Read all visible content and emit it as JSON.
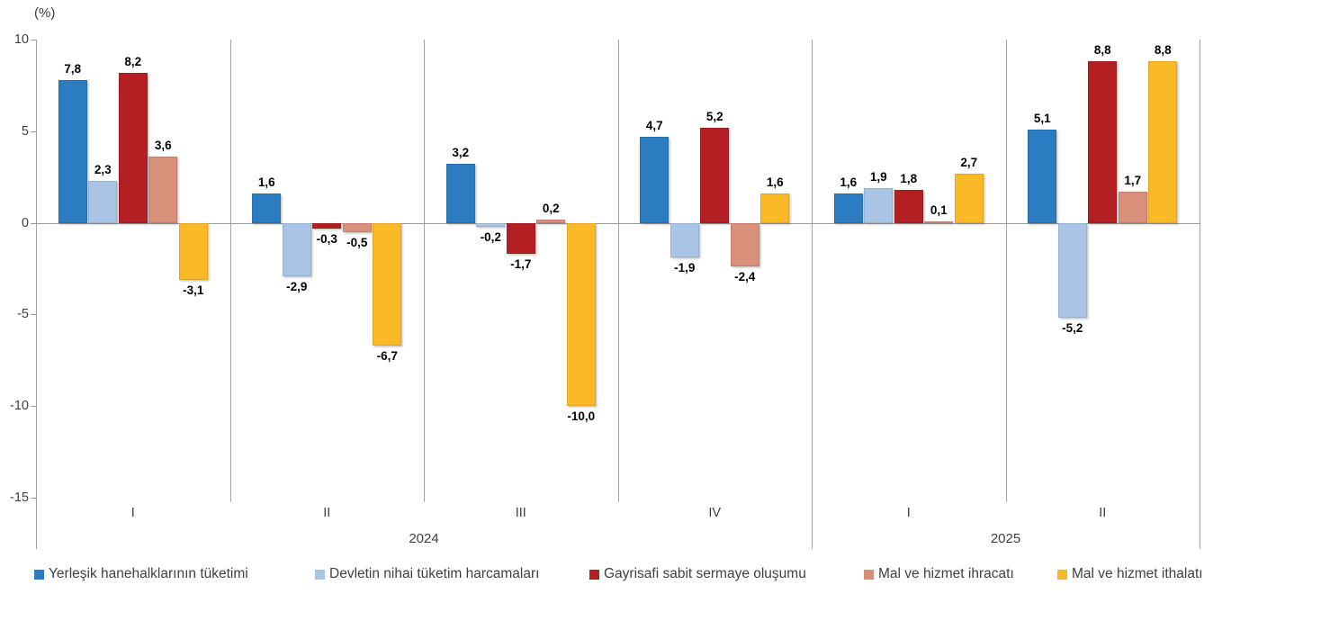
{
  "chart_data": {
    "type": "bar",
    "title": "",
    "unit_label": "(%)",
    "xlabel": "",
    "ylabel": "(%)",
    "y_axis": {
      "min": -15,
      "max": 10,
      "ticks": [
        10,
        5,
        0,
        -5,
        -10,
        -15
      ],
      "grid": false
    },
    "categories": [
      "I",
      "II",
      "III",
      "IV",
      "I",
      "II"
    ],
    "year_groups": [
      {
        "label": "2024",
        "quarters": [
          "I",
          "II",
          "III",
          "IV"
        ]
      },
      {
        "label": "2025",
        "quarters": [
          "I",
          "II"
        ]
      }
    ],
    "legend_position": "bottom",
    "series": [
      {
        "name": "Yerleşik hanehalklarının tüketimi",
        "color": "#2B7CC0",
        "values": [
          7.8,
          1.6,
          3.2,
          4.7,
          1.6,
          5.1
        ],
        "display": [
          "7,8",
          "1,6",
          "3,2",
          "4,7",
          "1,6",
          "5,1"
        ]
      },
      {
        "name": "Devletin nihai tüketim harcamaları",
        "color": "#AAC4E6",
        "values": [
          2.3,
          -2.9,
          -0.2,
          -1.9,
          1.9,
          -5.2
        ],
        "display": [
          "2,3",
          "-2,9",
          "-0,2",
          "-1,9",
          "1,9",
          "-5,2"
        ]
      },
      {
        "name": "Gayrisafi sabit sermaye oluşumu",
        "color": "#B41F24",
        "values": [
          8.2,
          -0.3,
          -1.7,
          5.2,
          1.8,
          8.8
        ],
        "display": [
          "8,2",
          "-0,3",
          "-1,7",
          "5,2",
          "1,8",
          "8,8"
        ]
      },
      {
        "name": "Mal ve hizmet ihracatı",
        "color": "#D9907B",
        "values": [
          3.6,
          -0.5,
          0.2,
          -2.4,
          0.1,
          1.7
        ],
        "display": [
          "3,6",
          "-0,5",
          "0,2",
          "-2,4",
          "0,1",
          "1,7"
        ]
      },
      {
        "name": "Mal ve hizmet ithalatı",
        "color": "#FBB827",
        "values": [
          -3.1,
          -6.7,
          -10.0,
          1.6,
          2.7,
          8.8
        ],
        "display": [
          "-3,1",
          "-6,7",
          "-10,0",
          "1,6",
          "2,7",
          "8,8"
        ]
      }
    ]
  }
}
